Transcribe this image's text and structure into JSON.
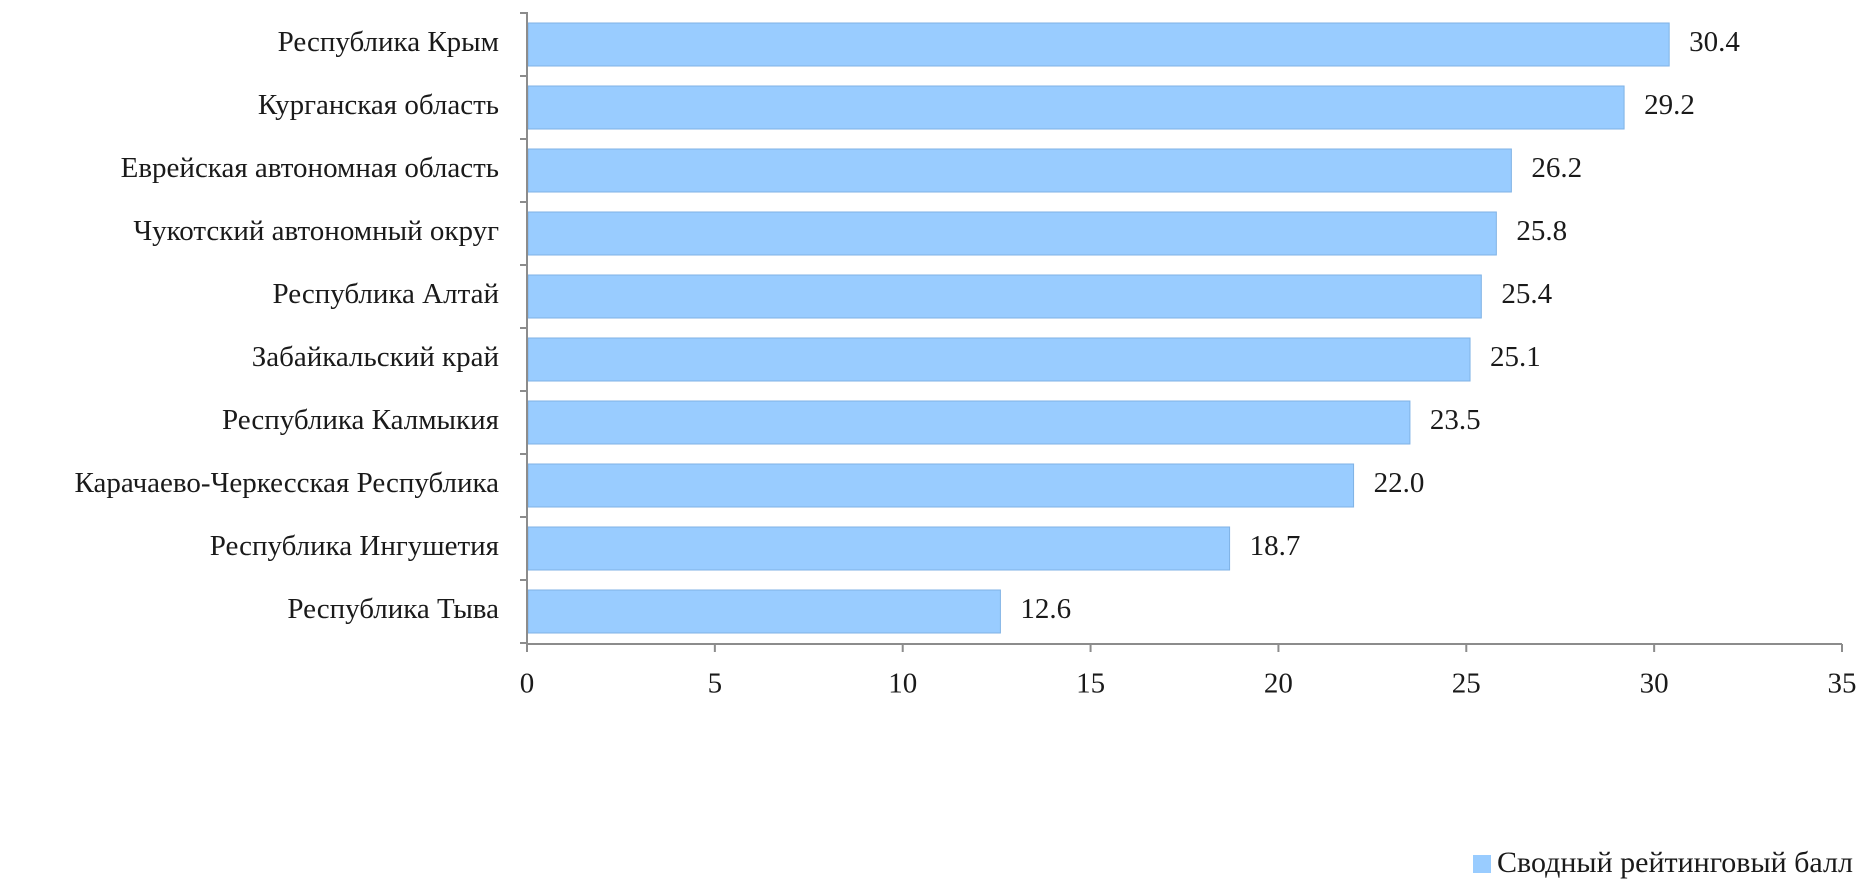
{
  "chart_data": {
    "type": "bar",
    "orientation": "horizontal",
    "categories": [
      "Республика Крым",
      "Курганская область",
      "Еврейская автономная область",
      "Чукотский автономный округ",
      "Республика Алтай",
      "Забайкальский край",
      "Республика Калмыкия",
      "Карачаево-Черкесская Республика",
      "Республика Ингушетия",
      "Республика Тыва"
    ],
    "series": [
      {
        "name": "Сводный рейтинговый балл",
        "values": [
          30.4,
          29.2,
          26.2,
          25.8,
          25.4,
          25.1,
          23.5,
          22.0,
          18.7,
          12.6
        ],
        "value_labels": [
          "30.4",
          "29.2",
          "26.2",
          "25.8",
          "25.4",
          "25.1",
          "23.5",
          "22.0",
          "18.7",
          "12.6"
        ]
      }
    ],
    "title": "",
    "xlabel": "",
    "ylabel": "",
    "xlim": [
      0,
      35
    ],
    "xticks": [
      0,
      5,
      10,
      15,
      20,
      25,
      30,
      35
    ],
    "xtick_labels": [
      "0",
      "5",
      "10",
      "15",
      "20",
      "25",
      "30",
      "35"
    ],
    "grid": false,
    "legend": "bottom-right",
    "colors": {
      "bar_fill": "#99CCFF",
      "bar_stroke": "#7FB2E5",
      "axis": "#8C8C8C",
      "text": "#1A1A1A"
    }
  }
}
